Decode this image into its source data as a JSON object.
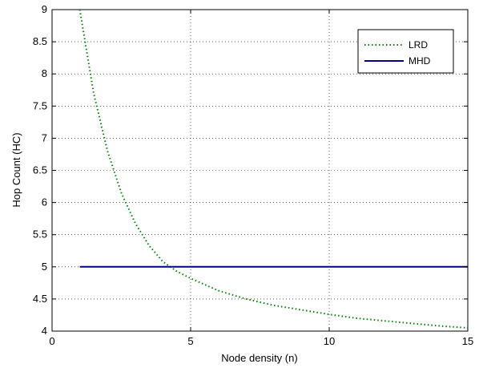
{
  "chart_data": {
    "type": "line",
    "title": "",
    "xlabel": "Node density (n)",
    "ylabel": "Hop Count (HC)",
    "xlim": [
      0,
      15
    ],
    "ylim": [
      4,
      9
    ],
    "x_ticks": [
      0,
      5,
      10,
      15
    ],
    "x_tick_labels": [
      "0",
      "5",
      "10",
      "15"
    ],
    "y_ticks": [
      4,
      4.5,
      5,
      5.5,
      6,
      6.5,
      7,
      7.5,
      8,
      8.5,
      9
    ],
    "y_tick_labels": [
      "4",
      "4.5",
      "5",
      "5.5",
      "6",
      "6.5",
      "7",
      "7.5",
      "8",
      "8.5",
      "9"
    ],
    "grid": true,
    "legend_position": "top-right",
    "series": [
      {
        "name": "LRD",
        "color": "#008000",
        "style": "dotted",
        "x": [
          1,
          1.5,
          2,
          2.5,
          3,
          3.5,
          4,
          4.5,
          5,
          6,
          7,
          8,
          9,
          10,
          11,
          12,
          13,
          14,
          15
        ],
        "y": [
          9.0,
          7.7,
          6.8,
          6.15,
          5.68,
          5.33,
          5.08,
          4.93,
          4.82,
          4.63,
          4.5,
          4.4,
          4.33,
          4.26,
          4.2,
          4.16,
          4.12,
          4.08,
          4.05
        ]
      },
      {
        "name": "MHD",
        "color": "#00008b",
        "style": "solid",
        "x": [
          1,
          15
        ],
        "y": [
          5,
          5
        ]
      }
    ]
  }
}
